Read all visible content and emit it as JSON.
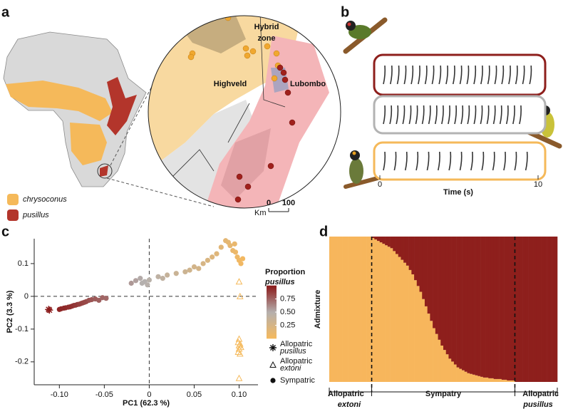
{
  "panel_labels": [
    "a",
    "b",
    "c",
    "d"
  ],
  "map": {
    "legend": [
      {
        "name": "chrysoconus",
        "color": "#f5b95a"
      },
      {
        "name": "pusillus",
        "color": "#b3352b"
      }
    ],
    "hybrid_zone": [
      "Hybrid",
      "zone"
    ],
    "labels": [
      "Highveld",
      "Lubombo"
    ],
    "scale": {
      "unit": "Km",
      "ticks": [
        0,
        100
      ]
    }
  },
  "song": {
    "xlabel": "Time (s)",
    "xlim": [
      0,
      10
    ],
    "xticks": [
      0,
      10
    ],
    "rows": [
      {
        "color": "#8e1f1c"
      },
      {
        "color": "#b3b3b3"
      },
      {
        "color": "#f5b95a"
      }
    ]
  },
  "chart_data": [
    {
      "type": "scatter",
      "xlabel": "PC1 (62.3 %)",
      "ylabel": "PC2 (3.3 %)",
      "xlim": [
        -0.128,
        0.121
      ],
      "ylim": [
        -0.27,
        0.176
      ],
      "xticks": [
        {
          "value": -0.1,
          "label": "-0.10"
        },
        {
          "value": -0.05,
          "label": "-0.05"
        },
        0,
        {
          "value": 0.05,
          "label": "0.05"
        },
        {
          "value": 0.1,
          "label": "0.10"
        }
      ],
      "yticks": [
        0.1,
        0,
        -0.1,
        -0.2
      ],
      "colorbar": {
        "title": "Proportion",
        "taxon": "pusillus",
        "lim": [
          0,
          1
        ],
        "colors": [
          "#f6b95c",
          "#b5b0ae",
          "#8b1a1a"
        ],
        "ticks": [
          0.75,
          {
            "value": 0.5,
            "label": "0.50"
          },
          0.25
        ]
      },
      "series": [
        {
          "name": "Allopatric",
          "taxon": "pusillus",
          "marker": "asterisk",
          "color": "#8b1a1a",
          "x": [
            -0.112,
            -0.111
          ],
          "values": [
            -0.04,
            -0.042
          ]
        },
        {
          "name": "Allopatric",
          "taxon": "extoni",
          "marker": "triangle",
          "color": "#f5b95a",
          "x": [
            0.1,
            0.101,
            0.1,
            0.099,
            0.101,
            0.1,
            0.102,
            0.1,
            0.099,
            0.101,
            0.1
          ],
          "values": [
            0.045,
            0.0,
            -0.13,
            -0.14,
            -0.145,
            -0.15,
            -0.155,
            -0.16,
            -0.17,
            -0.175,
            -0.25
          ]
        },
        {
          "name": "Sympatric",
          "marker": "circle",
          "x": [
            -0.1,
            -0.098,
            -0.095,
            -0.093,
            -0.09,
            -0.088,
            -0.086,
            -0.084,
            -0.082,
            -0.08,
            -0.078,
            -0.076,
            -0.074,
            -0.072,
            -0.07,
            -0.067,
            -0.064,
            -0.06,
            -0.056,
            -0.052,
            -0.048,
            -0.02,
            -0.015,
            -0.01,
            -0.008,
            -0.005,
            -0.002,
            0.0,
            0.01,
            0.015,
            0.02,
            0.03,
            0.04,
            0.045,
            0.05,
            0.055,
            0.06,
            0.065,
            0.07,
            0.075,
            0.08,
            0.085,
            0.088,
            0.09,
            0.093,
            0.095,
            0.096,
            0.098,
            0.1,
            0.102,
            0.104
          ],
          "values": [
            -0.04,
            -0.038,
            -0.036,
            -0.035,
            -0.033,
            -0.032,
            -0.03,
            -0.028,
            -0.027,
            -0.025,
            -0.024,
            -0.022,
            -0.02,
            -0.018,
            -0.016,
            -0.012,
            -0.01,
            -0.008,
            -0.012,
            -0.004,
            -0.006,
            0.04,
            0.048,
            0.055,
            0.04,
            0.045,
            0.035,
            0.05,
            0.06,
            0.055,
            0.065,
            0.07,
            0.075,
            0.08,
            0.09,
            0.085,
            0.1,
            0.11,
            0.12,
            0.13,
            0.15,
            0.17,
            0.165,
            0.155,
            0.14,
            0.16,
            0.135,
            0.12,
            0.11,
            0.1,
            0.115
          ],
          "proportion": [
            0.97,
            0.96,
            0.95,
            0.95,
            0.94,
            0.93,
            0.93,
            0.92,
            0.9,
            0.9,
            0.88,
            0.87,
            0.86,
            0.85,
            0.84,
            0.82,
            0.8,
            0.78,
            0.77,
            0.75,
            0.74,
            0.58,
            0.55,
            0.52,
            0.5,
            0.5,
            0.48,
            0.47,
            0.43,
            0.42,
            0.38,
            0.35,
            0.33,
            0.3,
            0.28,
            0.27,
            0.25,
            0.22,
            0.2,
            0.18,
            0.16,
            0.14,
            0.13,
            0.12,
            0.1,
            0.1,
            0.08,
            0.06,
            0.05,
            0.04,
            0.03
          ]
        }
      ]
    },
    {
      "type": "stacked_bar",
      "ylabel": "Admixture",
      "ylim": [
        0,
        1
      ],
      "groups": [
        {
          "label": "Allopatric",
          "taxon": "extoni"
        },
        {
          "label": "Sympatry"
        },
        {
          "label": "Allopatric",
          "taxon": "pusillus"
        }
      ],
      "series": [
        {
          "color": "#f7b65c",
          "values": [
            1,
            1,
            1,
            1,
            1,
            1,
            1,
            1,
            1,
            1,
            1,
            1,
            1,
            1,
            1,
            1,
            0.99,
            0.98,
            0.97,
            0.96,
            0.95,
            0.94,
            0.93,
            0.92,
            0.9,
            0.88,
            0.86,
            0.84,
            0.82,
            0.8,
            0.77,
            0.74,
            0.7,
            0.66,
            0.62,
            0.57,
            0.52,
            0.47,
            0.42,
            0.37,
            0.33,
            0.29,
            0.25,
            0.22,
            0.19,
            0.16,
            0.14,
            0.12,
            0.1,
            0.09,
            0.08,
            0.07,
            0.06,
            0.055,
            0.05,
            0.045,
            0.04,
            0.035,
            0.03,
            0.03,
            0.025,
            0.025,
            0.02,
            0.02,
            0.02,
            0.015,
            0.015,
            0.01,
            0.01,
            0.01,
            0,
            0,
            0,
            0,
            0,
            0,
            0,
            0,
            0,
            0,
            0,
            0,
            0,
            0,
            0,
            0
          ]
        },
        {
          "color": "#8e1f1c",
          "values": [
            0,
            0,
            0,
            0,
            0,
            0,
            0,
            0,
            0,
            0,
            0,
            0,
            0,
            0,
            0,
            0,
            0.01,
            0.02,
            0.03,
            0.04,
            0.05,
            0.06,
            0.07,
            0.08,
            0.1,
            0.12,
            0.14,
            0.16,
            0.18,
            0.2,
            0.23,
            0.26,
            0.3,
            0.34,
            0.38,
            0.43,
            0.48,
            0.53,
            0.58,
            0.63,
            0.67,
            0.71,
            0.75,
            0.78,
            0.81,
            0.84,
            0.86,
            0.88,
            0.9,
            0.91,
            0.92,
            0.93,
            0.94,
            0.945,
            0.95,
            0.955,
            0.96,
            0.965,
            0.97,
            0.97,
            0.975,
            0.975,
            0.98,
            0.98,
            0.98,
            0.985,
            0.985,
            0.99,
            0.99,
            0.99,
            1,
            1,
            1,
            1,
            1,
            1,
            1,
            1,
            1,
            1,
            1,
            1,
            1,
            1,
            1,
            1
          ]
        }
      ]
    }
  ]
}
